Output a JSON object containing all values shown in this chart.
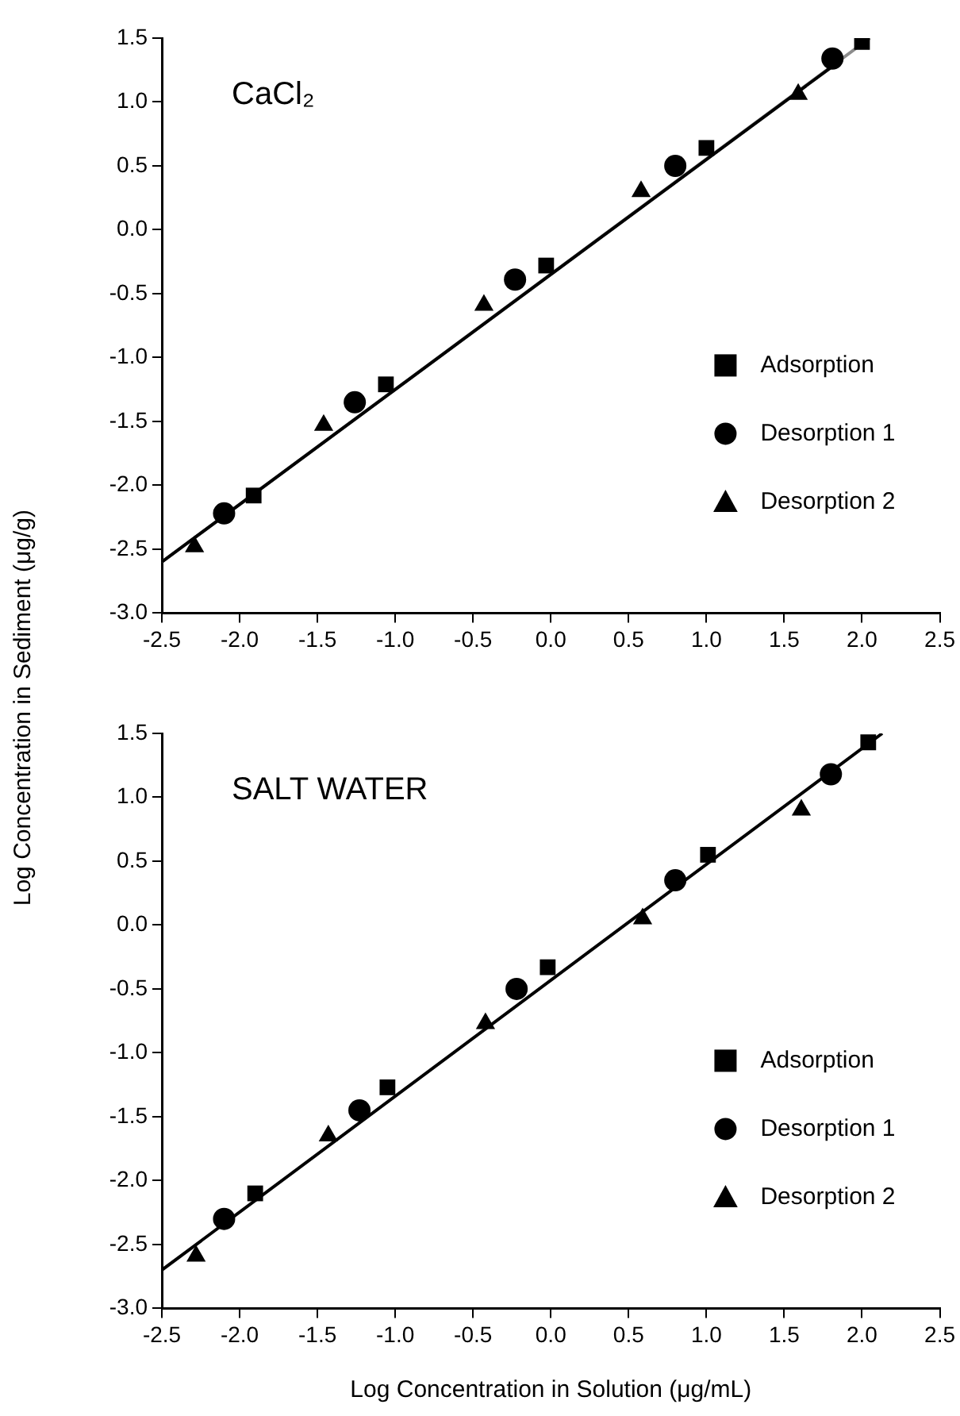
{
  "chart_data": [
    {
      "type": "scatter",
      "title": "CaCl₂",
      "ylabel": "Log Concentration in Sediment (μg/g)",
      "xlim": [
        -2.5,
        2.5
      ],
      "xticks": [
        -2.5,
        {
          "value": -2,
          "label": "-2.0"
        },
        -1.5,
        {
          "value": -1,
          "label": "-1.0"
        },
        -0.5,
        {
          "value": 0,
          "label": "0.0"
        },
        0.5,
        {
          "value": 1,
          "label": "1.0"
        },
        1.5,
        {
          "value": 2,
          "label": "2.0"
        },
        2.5
      ],
      "ylim": [
        -3,
        1.5
      ],
      "yticks": [
        {
          "value": -3,
          "label": "-3.0"
        },
        -2.5,
        {
          "value": -2,
          "label": "-2.0"
        },
        -1.5,
        {
          "value": -1,
          "label": "-1.0"
        },
        -0.5,
        {
          "value": 0,
          "label": "0.0"
        },
        0.5,
        {
          "value": 1,
          "label": "1.0"
        },
        1.5
      ],
      "legend": "bottom right",
      "series": [
        {
          "name": "Adsorption",
          "color": "#000000",
          "marker": "square",
          "x": [
            -1.91,
            -1.06,
            -0.03,
            1.0,
            2.0
          ],
          "values": [
            -2.08,
            -1.21,
            -0.28,
            0.64,
            1.47
          ]
        },
        {
          "name": "Desorption 1",
          "color": "#000000",
          "marker": "circle",
          "x": [
            -2.1,
            -1.26,
            -0.23,
            0.8,
            1.81
          ],
          "values": [
            -2.22,
            -1.35,
            -0.39,
            0.5,
            1.34
          ]
        },
        {
          "name": "Desorption 2",
          "color": "#000000",
          "marker": "triangle",
          "x": [
            -2.29,
            -1.46,
            -0.43,
            0.58,
            1.59
          ],
          "values": [
            -2.48,
            -1.53,
            -0.59,
            0.3,
            1.06
          ]
        },
        {
          "type": "line",
          "color": "#000000",
          "marker": "none",
          "x": [
            -2.5,
            1.8
          ],
          "values": [
            -2.6,
            1.27
          ]
        },
        {
          "type": "line",
          "color": "#8c8c8c",
          "marker": "none",
          "x": [
            -2.5,
            2.05
          ],
          "values": [
            -2.6,
            1.5
          ]
        }
      ]
    },
    {
      "type": "scatter",
      "title": "SALT WATER",
      "xlabel": "Log Concentration in Solution (μg/mL)",
      "xlim": [
        -2.5,
        2.5
      ],
      "xticks": [
        -2.5,
        {
          "value": -2,
          "label": "-2.0"
        },
        -1.5,
        {
          "value": -1,
          "label": "-1.0"
        },
        -0.5,
        {
          "value": 0,
          "label": "0.0"
        },
        0.5,
        {
          "value": 1,
          "label": "1.0"
        },
        1.5,
        {
          "value": 2,
          "label": "2.0"
        },
        2.5
      ],
      "ylim": [
        -3,
        1.5
      ],
      "yticks": [
        {
          "value": -3,
          "label": "-3.0"
        },
        -2.5,
        {
          "value": -2,
          "label": "-2.0"
        },
        -1.5,
        {
          "value": -1,
          "label": "-1.0"
        },
        -0.5,
        {
          "value": 0,
          "label": "0.0"
        },
        0.5,
        {
          "value": 1,
          "label": "1.0"
        },
        1.5
      ],
      "legend": "bottom right",
      "series": [
        {
          "name": "Adsorption",
          "color": "#000000",
          "marker": "square",
          "x": [
            -1.9,
            -1.05,
            -0.02,
            1.01,
            2.04
          ],
          "values": [
            -2.1,
            -1.27,
            -0.33,
            0.55,
            1.43
          ]
        },
        {
          "name": "Desorption 1",
          "color": "#000000",
          "marker": "circle",
          "x": [
            -2.1,
            -1.23,
            -0.22,
            0.8,
            1.8
          ],
          "values": [
            -2.3,
            -1.45,
            -0.5,
            0.35,
            1.18
          ]
        },
        {
          "name": "Desorption 2",
          "color": "#000000",
          "marker": "triangle",
          "x": [
            -2.28,
            -1.43,
            -0.42,
            0.59,
            1.61
          ],
          "values": [
            -2.59,
            -1.65,
            -0.77,
            0.05,
            0.9
          ]
        },
        {
          "type": "line",
          "color": "#000000",
          "marker": "none",
          "x": [
            -2.5,
            2.13
          ],
          "values": [
            -2.7,
            1.5
          ]
        }
      ]
    }
  ]
}
